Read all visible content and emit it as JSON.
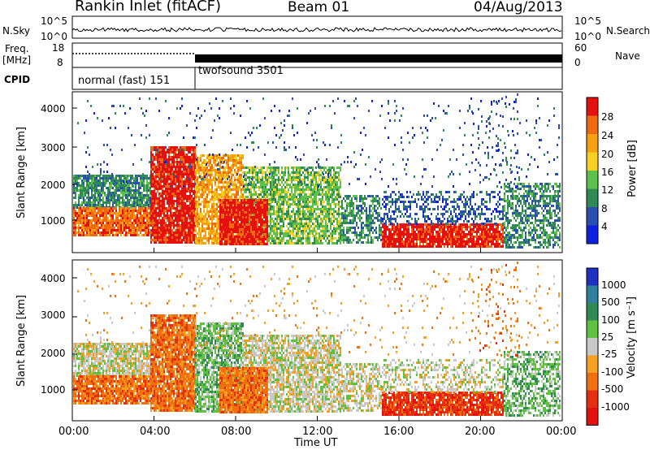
{
  "header": {
    "station": "Rankin Inlet (fitACF)",
    "beam": "Beam 01",
    "date": "04/Aug/2013"
  },
  "noise_panel": {
    "left_label": "N.Sky",
    "right_label": "N.Search",
    "left_ticks": [
      "10^5",
      "10^0"
    ],
    "right_ticks": [
      "10^5",
      "10^0"
    ]
  },
  "freq_panel": {
    "left_label_1": "Freq.",
    "left_label_2": "[MHz]",
    "right_label": "Nave",
    "left_ticks": [
      "18",
      "8"
    ],
    "right_ticks": [
      "60",
      "0"
    ]
  },
  "cpid_panel": {
    "label": "CPID",
    "modes": [
      {
        "name": "normal (fast) 151",
        "start_hour": 0
      },
      {
        "name": "twofsound 3501",
        "start_hour": 6
      }
    ]
  },
  "x_axis": {
    "title": "Time UT",
    "ticks": [
      "00:00",
      "04:00",
      "08:00",
      "12:00",
      "16:00",
      "20:00",
      "00:00"
    ]
  },
  "power_panel": {
    "ylabel": "Slant Range [km]",
    "yticks": [
      "4000",
      "3000",
      "2000",
      "1000"
    ],
    "colorbar_title": "Power [dB]",
    "colorbar_ticks": [
      "28",
      "24",
      "20",
      "16",
      "12",
      "8",
      "4"
    ],
    "colors": [
      "#1020e0",
      "#2a4fb0",
      "#2f8a55",
      "#5cc04a",
      "#f5d020",
      "#f5a010",
      "#f06a10",
      "#e51010"
    ]
  },
  "velocity_panel": {
    "ylabel": "Slant Range [km]",
    "yticks": [
      "4000",
      "3000",
      "2000",
      "1000"
    ],
    "colorbar_title": "Velocity [m s⁻¹]",
    "colorbar_ticks": [
      "1000",
      "500",
      "100",
      "25",
      "-25",
      "-100",
      "-500",
      "-1000"
    ],
    "colors": [
      "#2030c0",
      "#2f7f9f",
      "#2f8a55",
      "#60c040",
      "#c8c8c8",
      "#f5a020",
      "#f07010",
      "#e53010",
      "#e51010"
    ]
  },
  "chart_data": {
    "type": "heatmap",
    "x": [
      "00:00",
      "04:00",
      "08:00",
      "12:00",
      "16:00",
      "20:00",
      "00:00"
    ],
    "xlabel": "Time UT",
    "ylabel": "Slant Range [km]",
    "ylim": [
      180,
      4500
    ],
    "series": [
      {
        "name": "Power [dB]",
        "scale": [
          4,
          8,
          12,
          16,
          20,
          24,
          28
        ]
      },
      {
        "name": "Velocity [m s⁻¹]",
        "scale": [
          1000,
          500,
          100,
          25,
          -25,
          -100,
          -500,
          -1000
        ]
      }
    ]
  }
}
